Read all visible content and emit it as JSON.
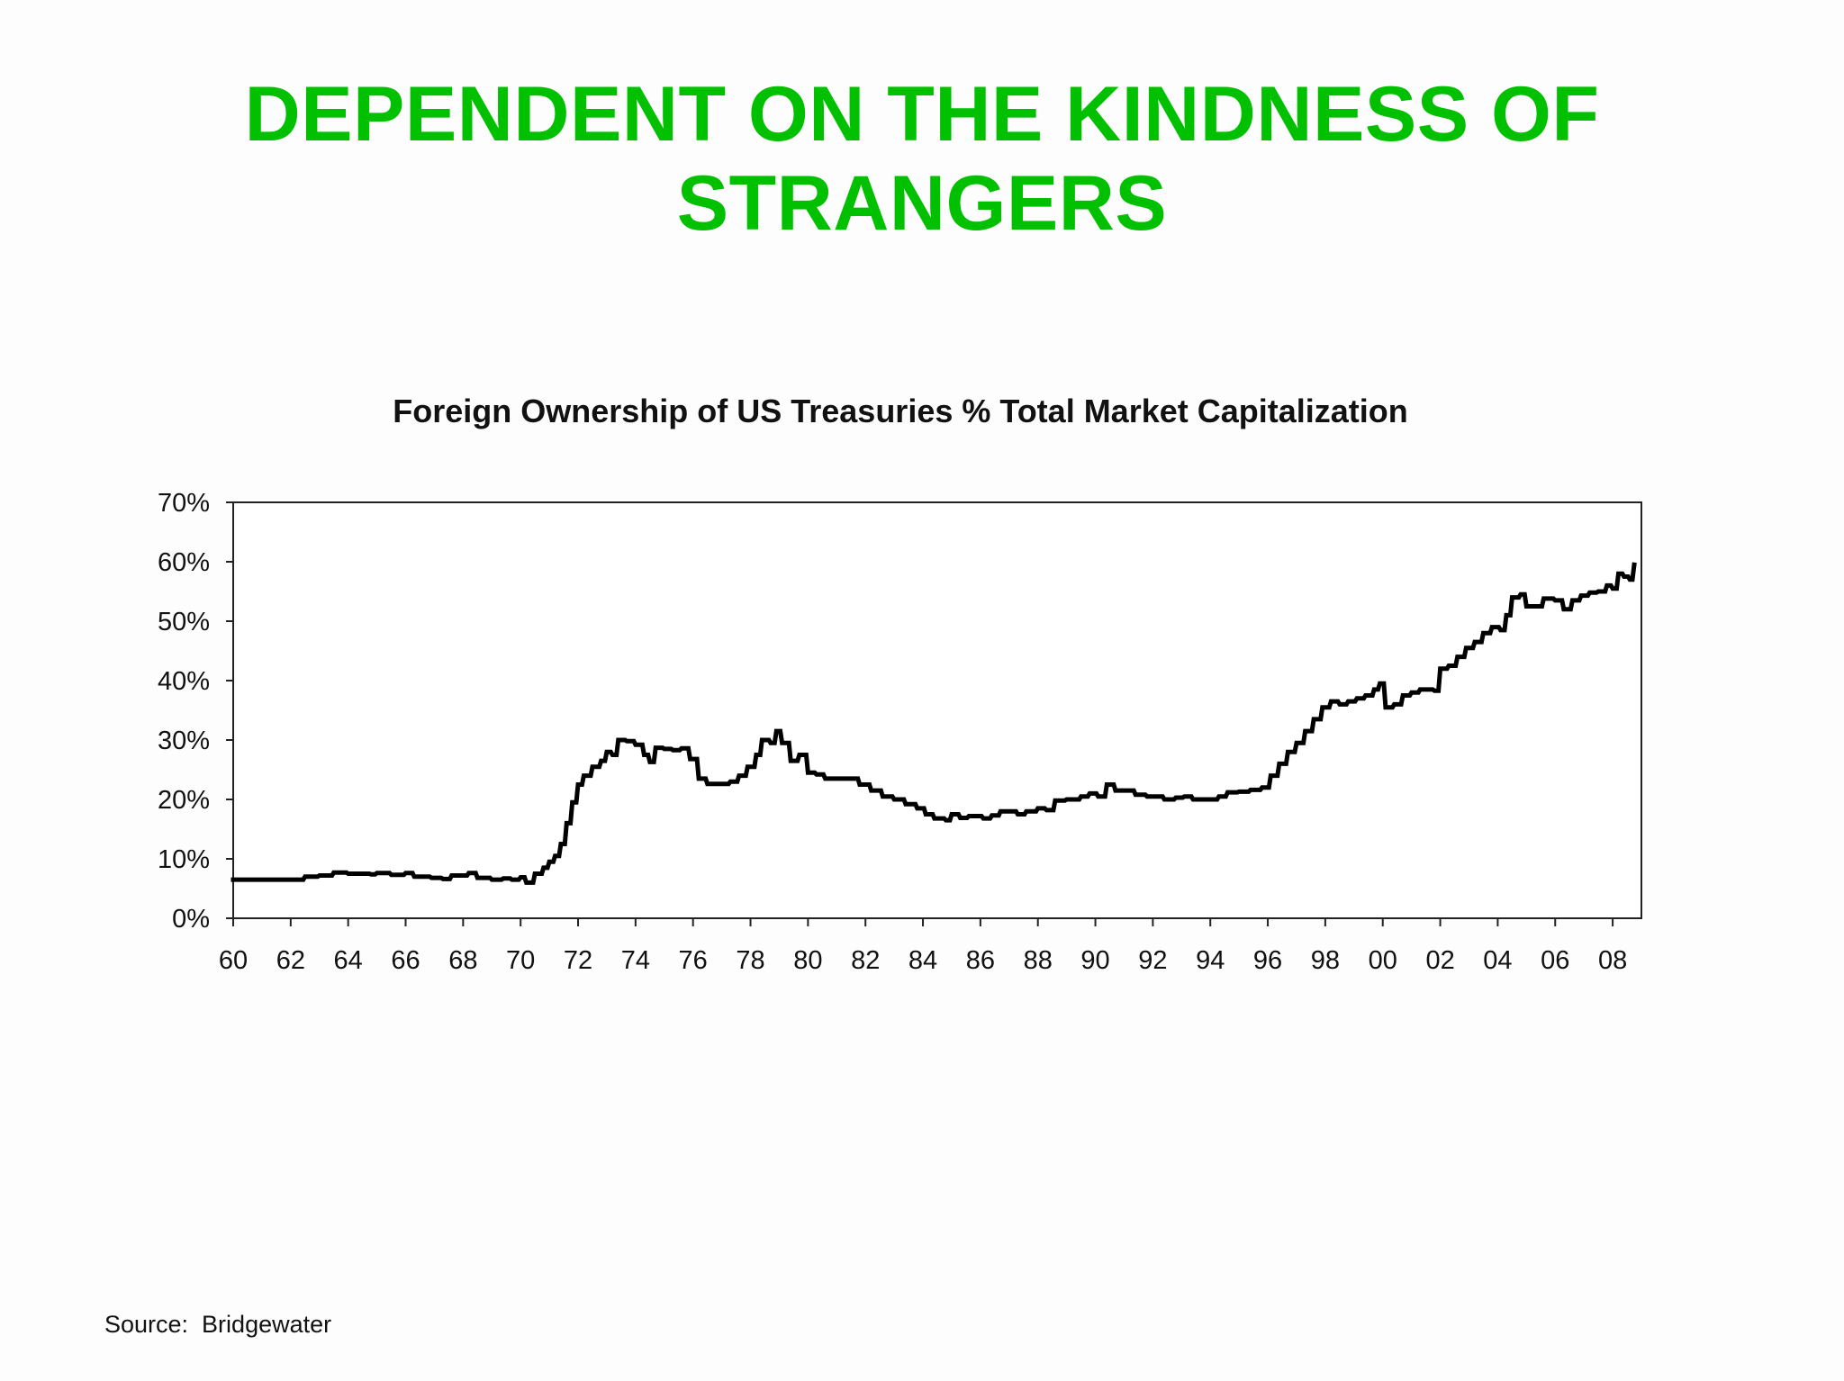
{
  "slide": {
    "title": "DEPENDENT ON THE KINDNESS OF STRANGERS",
    "title_color": "#00c000",
    "source": "Source:  Bridgewater"
  },
  "chart_data": {
    "type": "line",
    "title": "Foreign Ownership of US Treasuries % Total Market Capitalization",
    "xlabel": "",
    "ylabel": "",
    "ylim": [
      0,
      70
    ],
    "xlim": [
      1960,
      2009
    ],
    "grid": false,
    "line_color": "#000000",
    "yticks": [
      {
        "value": 0,
        "label": "0%"
      },
      {
        "value": 10,
        "label": "10%"
      },
      {
        "value": 20,
        "label": "20%"
      },
      {
        "value": 30,
        "label": "30%"
      },
      {
        "value": 40,
        "label": "40%"
      },
      {
        "value": 50,
        "label": "50%"
      },
      {
        "value": 60,
        "label": "60%"
      },
      {
        "value": 70,
        "label": "70%"
      }
    ],
    "xticks": [
      {
        "value": 1960,
        "label": "60"
      },
      {
        "value": 1962,
        "label": "62"
      },
      {
        "value": 1964,
        "label": "64"
      },
      {
        "value": 1966,
        "label": "66"
      },
      {
        "value": 1968,
        "label": "68"
      },
      {
        "value": 1970,
        "label": "70"
      },
      {
        "value": 1972,
        "label": "72"
      },
      {
        "value": 1974,
        "label": "74"
      },
      {
        "value": 1976,
        "label": "76"
      },
      {
        "value": 1978,
        "label": "78"
      },
      {
        "value": 1980,
        "label": "80"
      },
      {
        "value": 1982,
        "label": "82"
      },
      {
        "value": 1984,
        "label": "84"
      },
      {
        "value": 1986,
        "label": "86"
      },
      {
        "value": 1988,
        "label": "88"
      },
      {
        "value": 1990,
        "label": "90"
      },
      {
        "value": 1992,
        "label": "92"
      },
      {
        "value": 1994,
        "label": "94"
      },
      {
        "value": 1996,
        "label": "96"
      },
      {
        "value": 1998,
        "label": "98"
      },
      {
        "value": 2000,
        "label": "00"
      },
      {
        "value": 2002,
        "label": "02"
      },
      {
        "value": 2004,
        "label": "04"
      },
      {
        "value": 2006,
        "label": "06"
      },
      {
        "value": 2008,
        "label": "08"
      }
    ],
    "series": [
      {
        "points": [
          [
            1960.0,
            6.5
          ],
          [
            1962.3,
            6.5
          ],
          [
            1962.5,
            7.0
          ],
          [
            1963.0,
            7.2
          ],
          [
            1963.5,
            7.7
          ],
          [
            1964.0,
            7.5
          ],
          [
            1964.8,
            7.4
          ],
          [
            1965.0,
            7.6
          ],
          [
            1965.5,
            7.3
          ],
          [
            1966.0,
            7.6
          ],
          [
            1966.3,
            7.0
          ],
          [
            1966.9,
            6.8
          ],
          [
            1967.3,
            6.6
          ],
          [
            1967.6,
            7.2
          ],
          [
            1968.2,
            7.6
          ],
          [
            1968.5,
            6.8
          ],
          [
            1969.0,
            6.5
          ],
          [
            1969.4,
            6.7
          ],
          [
            1969.7,
            6.5
          ],
          [
            1970.0,
            6.9
          ],
          [
            1970.2,
            6.0
          ],
          [
            1970.5,
            7.5
          ],
          [
            1970.8,
            8.5
          ],
          [
            1971.0,
            9.5
          ],
          [
            1971.2,
            10.5
          ],
          [
            1971.4,
            12.5
          ],
          [
            1971.6,
            16.0
          ],
          [
            1971.8,
            19.5
          ],
          [
            1972.0,
            22.5
          ],
          [
            1972.2,
            24.0
          ],
          [
            1972.5,
            25.5
          ],
          [
            1972.8,
            26.5
          ],
          [
            1973.0,
            28.0
          ],
          [
            1973.2,
            27.5
          ],
          [
            1973.4,
            30.0
          ],
          [
            1973.7,
            29.8
          ],
          [
            1974.0,
            29.2
          ],
          [
            1974.3,
            27.5
          ],
          [
            1974.5,
            26.3
          ],
          [
            1974.7,
            28.7
          ],
          [
            1975.0,
            28.5
          ],
          [
            1975.3,
            28.3
          ],
          [
            1975.6,
            28.6
          ],
          [
            1975.9,
            26.8
          ],
          [
            1976.2,
            23.5
          ],
          [
            1976.5,
            22.6
          ],
          [
            1977.0,
            22.6
          ],
          [
            1977.3,
            23.0
          ],
          [
            1977.6,
            24.0
          ],
          [
            1977.9,
            25.5
          ],
          [
            1978.2,
            27.5
          ],
          [
            1978.4,
            30.0
          ],
          [
            1978.7,
            29.5
          ],
          [
            1978.9,
            31.5
          ],
          [
            1979.1,
            29.5
          ],
          [
            1979.4,
            26.5
          ],
          [
            1979.7,
            27.5
          ],
          [
            1980.0,
            24.5
          ],
          [
            1980.3,
            24.2
          ],
          [
            1980.6,
            23.5
          ],
          [
            1981.0,
            23.5
          ],
          [
            1981.5,
            23.5
          ],
          [
            1981.8,
            22.5
          ],
          [
            1982.2,
            21.5
          ],
          [
            1982.6,
            20.5
          ],
          [
            1983.0,
            20.0
          ],
          [
            1983.4,
            19.2
          ],
          [
            1983.8,
            18.5
          ],
          [
            1984.1,
            17.5
          ],
          [
            1984.4,
            16.8
          ],
          [
            1984.8,
            16.5
          ],
          [
            1985.0,
            17.5
          ],
          [
            1985.3,
            16.9
          ],
          [
            1985.6,
            17.2
          ],
          [
            1985.9,
            17.2
          ],
          [
            1986.1,
            16.8
          ],
          [
            1986.4,
            17.3
          ],
          [
            1986.7,
            18.0
          ],
          [
            1987.0,
            18.0
          ],
          [
            1987.3,
            17.5
          ],
          [
            1987.6,
            18.0
          ],
          [
            1988.0,
            18.5
          ],
          [
            1988.3,
            18.2
          ],
          [
            1988.6,
            19.8
          ],
          [
            1989.0,
            20.0
          ],
          [
            1989.5,
            20.5
          ],
          [
            1989.8,
            21.0
          ],
          [
            1990.1,
            20.5
          ],
          [
            1990.4,
            22.5
          ],
          [
            1990.7,
            21.5
          ],
          [
            1991.0,
            21.5
          ],
          [
            1991.4,
            20.8
          ],
          [
            1991.8,
            20.5
          ],
          [
            1992.1,
            20.5
          ],
          [
            1992.4,
            20.0
          ],
          [
            1992.8,
            20.3
          ],
          [
            1993.1,
            20.5
          ],
          [
            1993.4,
            20.0
          ],
          [
            1993.7,
            20.0
          ],
          [
            1994.0,
            20.0
          ],
          [
            1994.3,
            20.5
          ],
          [
            1994.6,
            21.2
          ],
          [
            1995.0,
            21.3
          ],
          [
            1995.4,
            21.6
          ],
          [
            1995.8,
            22.0
          ],
          [
            1996.1,
            24.0
          ],
          [
            1996.4,
            26.0
          ],
          [
            1996.7,
            28.0
          ],
          [
            1997.0,
            29.5
          ],
          [
            1997.3,
            31.5
          ],
          [
            1997.6,
            33.5
          ],
          [
            1997.9,
            35.5
          ],
          [
            1998.2,
            36.5
          ],
          [
            1998.5,
            36.0
          ],
          [
            1998.8,
            36.5
          ],
          [
            1999.1,
            37.0
          ],
          [
            1999.4,
            37.5
          ],
          [
            1999.7,
            38.5
          ],
          [
            1999.9,
            39.5
          ],
          [
            2000.1,
            35.5
          ],
          [
            2000.4,
            36.0
          ],
          [
            2000.7,
            37.5
          ],
          [
            2001.0,
            38.0
          ],
          [
            2001.3,
            38.5
          ],
          [
            2001.6,
            38.5
          ],
          [
            2001.8,
            38.3
          ],
          [
            2002.0,
            42.0
          ],
          [
            2002.3,
            42.5
          ],
          [
            2002.6,
            44.0
          ],
          [
            2002.9,
            45.5
          ],
          [
            2003.2,
            46.5
          ],
          [
            2003.5,
            48.0
          ],
          [
            2003.8,
            49.0
          ],
          [
            2004.1,
            48.5
          ],
          [
            2004.3,
            51.0
          ],
          [
            2004.5,
            54.0
          ],
          [
            2004.8,
            54.5
          ],
          [
            2005.0,
            52.5
          ],
          [
            2005.3,
            52.5
          ],
          [
            2005.6,
            53.8
          ],
          [
            2006.0,
            53.5
          ],
          [
            2006.3,
            52.0
          ],
          [
            2006.6,
            53.5
          ],
          [
            2006.9,
            54.3
          ],
          [
            2007.2,
            54.8
          ],
          [
            2007.5,
            55.0
          ],
          [
            2007.8,
            56.0
          ],
          [
            2008.0,
            55.5
          ],
          [
            2008.2,
            58.0
          ],
          [
            2008.4,
            57.5
          ],
          [
            2008.6,
            57.0
          ],
          [
            2008.75,
            59.5
          ]
        ]
      }
    ]
  }
}
